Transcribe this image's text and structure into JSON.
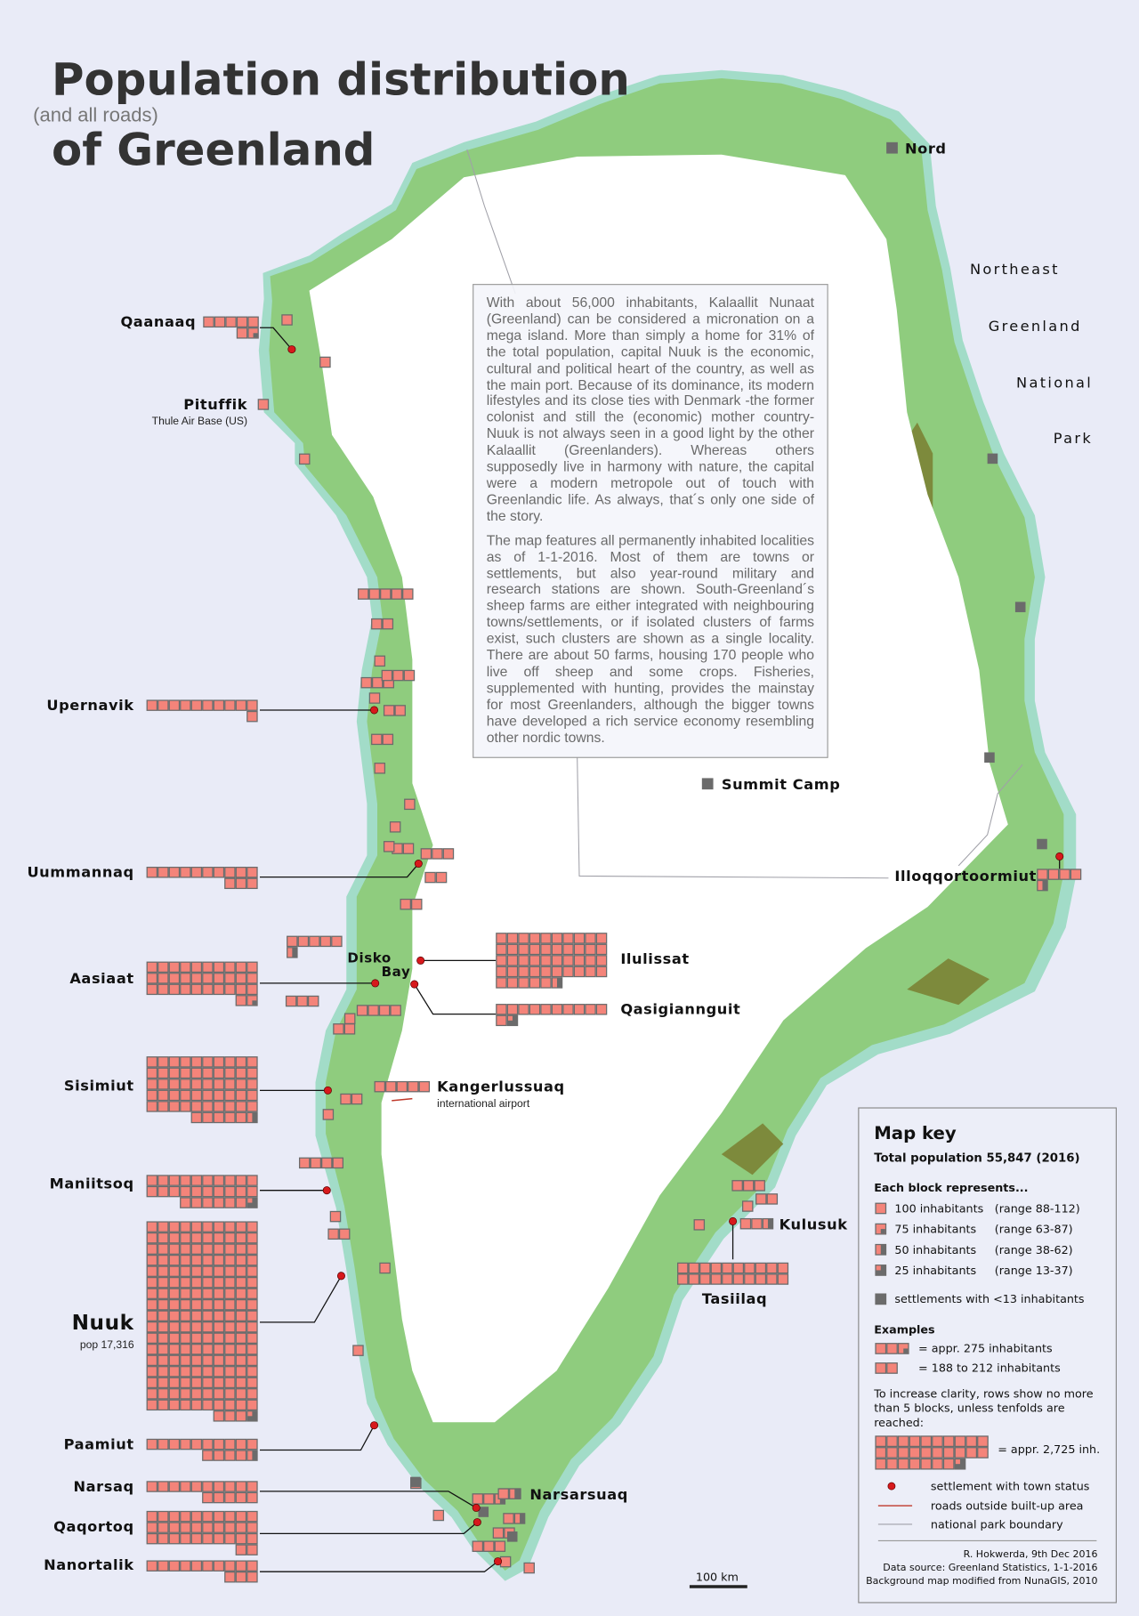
{
  "title": {
    "line1": "Population distribution",
    "aside": "(and all roads)",
    "line2": "of Greenland"
  },
  "colors": {
    "background": "#e9ebf7",
    "land": "#8fcc7e",
    "coast_water": "#a2dcc8",
    "tundra_dark": "#7d8a3c",
    "ice": "#ffffff",
    "block": "#f4847a",
    "block_border": "#6b6b6b",
    "town_dot": "#d7191c",
    "road": "#c0392b",
    "park_boundary": "#a0a0a8"
  },
  "intro": {
    "p1": "With about 56,000 inhabitants, Kalaallit Nunaat (Greenland) can be considered a micronation on a mega island. More than simply a home for 31% of the total population, capital Nuuk is the economic, cultural and political heart of the country, as well as the main port. Because of its dominance, its modern lifestyles and its close ties with Denmark -the former colonist and still the (economic) mother country- Nuuk is not always seen in a good light by the other Kalaallit (Greenlanders). Whereas others supposedly live in harmony with nature, the capital were a modern metropole out of touch with Greenlandic life. As always, that´s only one side of the story.",
    "p2": "The map features all permanently inhabited localities as of 1-1-2016. Most of them are towns or settlements, but also year-round military and research stations are shown. South-Greenland´s sheep farms are either integrated with neighbouring towns/settlements, or if isolated clusters of farms exist, such clusters are shown as a single locality. There are about 50 farms, housing 170 people who live off sheep and some crops. Fisheries, supplemented with hunting, provides the mainstay for most Greenlanders, although the bigger towns have developed a rich service economy resembling other nordic towns."
  },
  "towns": [
    {
      "name": "Qaanaaq",
      "blocks": 6.75,
      "town_status": true
    },
    {
      "name": "Upernavik",
      "blocks": 11,
      "town_status": true
    },
    {
      "name": "Uummannaq",
      "blocks": 13,
      "town_status": true
    },
    {
      "name": "Aasiaat",
      "blocks": 31.75,
      "town_status": true
    },
    {
      "name": "Ilulissat",
      "blocks": 45.5,
      "town_status": true
    },
    {
      "name": "Qasigiannguit",
      "blocks": 11.25,
      "town_status": true
    },
    {
      "name": "Sisimiut",
      "blocks": 55.5,
      "town_status": true
    },
    {
      "name": "Kangerlussuaq",
      "blocks": 5,
      "subtitle": "international airport",
      "town_status": false
    },
    {
      "name": "Maniitsoq",
      "blocks": 26.25,
      "town_status": true
    },
    {
      "name": "Nuuk",
      "blocks": 173.25,
      "subtitle": "pop 17,316",
      "town_status": true
    },
    {
      "name": "Paamiut",
      "blocks": 14.5,
      "town_status": true
    },
    {
      "name": "Narsaq",
      "blocks": 15,
      "town_status": true
    },
    {
      "name": "Qaqortoq",
      "blocks": 32,
      "town_status": true
    },
    {
      "name": "Nanortalik",
      "blocks": 13,
      "town_status": true
    },
    {
      "name": "Tasiilaq",
      "blocks": 20,
      "town_status": true
    },
    {
      "name": "Kulusuk",
      "blocks": 2.5,
      "town_status": false
    },
    {
      "name": "Illoqqortoormiut",
      "blocks": 4.5,
      "town_status": true
    },
    {
      "name": "Pituffik",
      "blocks": 1,
      "subtitle": "Thule Air Base (US)",
      "town_status": false
    },
    {
      "name": "Narsarsuaq",
      "blocks": 1.5,
      "town_status": false
    },
    {
      "name": "Nord",
      "blocks": 0,
      "town_status": false
    },
    {
      "name": "Summit Camp",
      "blocks": 0,
      "town_status": false
    }
  ],
  "region_labels": {
    "disko": "Disko",
    "bay": "Bay",
    "park": [
      "Northeast",
      "Greenland",
      "National",
      "Park"
    ]
  },
  "scalebar": "100 km",
  "key": {
    "title": "Map key",
    "total": "Total population 55,847 (2016)",
    "each_block": "Each block represents...",
    "rows": [
      {
        "fraction": 1,
        "label": "100 inhabitants",
        "range": "(range 88-112)"
      },
      {
        "fraction": 0.75,
        "label": "75 inhabitants",
        "range": "(range 63-87)"
      },
      {
        "fraction": 0.5,
        "label": "50 inhabitants",
        "range": "(range 38-62)"
      },
      {
        "fraction": 0.25,
        "label": "25 inhabitants",
        "range": "(range 13-37)"
      }
    ],
    "small": "settlements with <13 inhabitants",
    "examples_title": "Examples",
    "example1": {
      "blocks": 2.75,
      "label": "= appr. 275 inhabitants"
    },
    "example2": {
      "blocks": 2,
      "label": "= 188 to 212 inhabitants"
    },
    "clarity": [
      "To increase clarity, rows show no more",
      "than 5 blocks, unless tenfolds are",
      "reached:"
    ],
    "example3": {
      "blocks": 27.25,
      "label": "= appr. 2,725 inh."
    },
    "town_status": "settlement with town status",
    "roads": "roads outside built-up area",
    "park": "national park boundary",
    "credits": [
      "R. Hokwerda, 9th Dec 2016",
      "Data source: Greenland Statistics, 1-1-2016",
      "Background map modified from NunaGIS, 2010"
    ]
  }
}
